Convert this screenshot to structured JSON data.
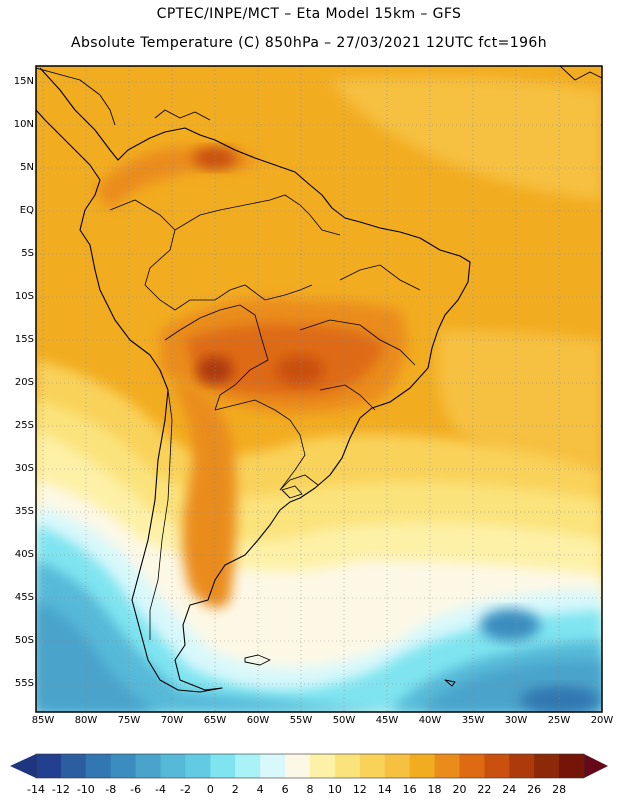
{
  "header": {
    "line1": "CPTEC/INPE/MCT –  Eta Model 15km – GFS",
    "line2": "Absolute Temperature (C) 850hPa – 27/03/2021 12UTC fct=196h"
  },
  "axes": {
    "lat_labels": [
      "15N",
      "10N",
      "5N",
      "EQ",
      "5S",
      "10S",
      "15S",
      "20S",
      "25S",
      "30S",
      "35S",
      "40S",
      "45S",
      "50S",
      "55S"
    ],
    "lon_labels": [
      "85W",
      "80W",
      "75W",
      "70W",
      "65W",
      "60W",
      "55W",
      "50W",
      "45W",
      "40W",
      "35W",
      "30W",
      "25W",
      "20W"
    ]
  },
  "colorbar": {
    "labels": [
      "-14",
      "-12",
      "-10",
      "-8",
      "-6",
      "-4",
      "-2",
      "0",
      "2",
      "4",
      "6",
      "8",
      "10",
      "12",
      "14",
      "16",
      "18",
      "20",
      "22",
      "24",
      "26",
      "28"
    ],
    "colors": [
      "#233f8f",
      "#2a5ea1",
      "#3277b1",
      "#3b8dbf",
      "#4aa3cb",
      "#57b9d8",
      "#62cbe3",
      "#7fe4f0",
      "#a9f2f8",
      "#d8f8fb",
      "#fdf8e6",
      "#fdf1a7",
      "#fbe37c",
      "#f9d25a",
      "#f6c040",
      "#f2ac20",
      "#ea8c1b",
      "#de6a12",
      "#c9500e",
      "#ad3a0a",
      "#8c2908",
      "#741507"
    ],
    "under_color": "#1e3580",
    "over_color": "#65081a"
  },
  "colors": {
    "border": "#000000",
    "grid": "#888888",
    "background": "#f2ac20"
  },
  "icons": [
    "colorbar-left-arrow-icon",
    "colorbar-right-arrow-icon"
  ]
}
